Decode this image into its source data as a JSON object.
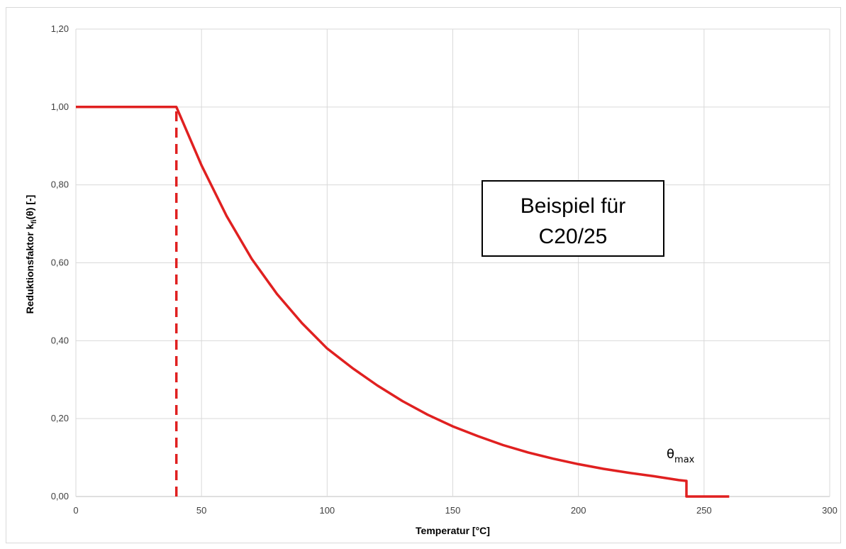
{
  "chart_data": {
    "type": "line",
    "title": "",
    "xlabel": "Temperatur [°C]",
    "ylabel": {
      "main": "Reduktionsfaktor k",
      "subscript": "fi",
      "suffix": "(θ) [-]"
    },
    "xlim": [
      0,
      300
    ],
    "ylim": [
      0,
      1.2
    ],
    "xticks": [
      0,
      50,
      100,
      150,
      200,
      250,
      300
    ],
    "xtick_labels": [
      "0",
      "50",
      "100",
      "150",
      "200",
      "250",
      "300"
    ],
    "yticks": [
      0,
      0.2,
      0.4,
      0.6,
      0.8,
      1.0,
      1.2
    ],
    "ytick_labels": [
      "0,00",
      "0,20",
      "0,40",
      "0,60",
      "0,80",
      "1,00",
      "1,20"
    ],
    "grid": true,
    "series": [
      {
        "style": "solid",
        "color": "#e02020",
        "x": [
          0,
          40,
          50,
          60,
          70,
          80,
          90,
          100,
          110,
          120,
          130,
          140,
          150,
          160,
          170,
          180,
          190,
          200,
          210,
          220,
          230,
          240,
          243,
          243,
          260
        ],
        "y": [
          1.0,
          1.0,
          0.85,
          0.72,
          0.61,
          0.52,
          0.445,
          0.38,
          0.33,
          0.285,
          0.245,
          0.21,
          0.18,
          0.155,
          0.132,
          0.113,
          0.097,
          0.083,
          0.071,
          0.061,
          0.052,
          0.042,
          0.04,
          0.0,
          0.0
        ]
      },
      {
        "style": "dashed",
        "color": "#e02020",
        "x": [
          40,
          40
        ],
        "y": [
          0.0,
          1.0
        ]
      }
    ],
    "annotations": [
      {
        "type": "box",
        "lines": [
          "Beispiel für",
          "C20/25"
        ]
      },
      {
        "type": "label",
        "text": "θ",
        "subscript": "max",
        "x": 243,
        "y": 0.04
      }
    ]
  }
}
